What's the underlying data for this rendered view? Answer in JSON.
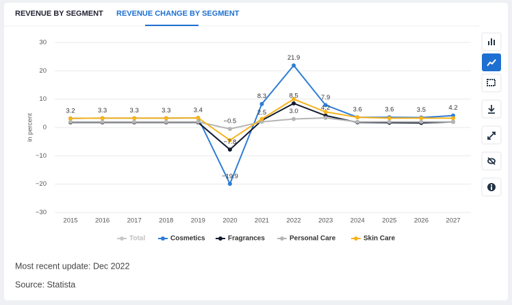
{
  "tabs": [
    "REVENUE BY SEGMENT",
    "REVENUE CHANGE BY SEGMENT"
  ],
  "active_tab": 1,
  "footer": {
    "update": "Most recent update: Dec 2022",
    "source": "Source: Statista"
  },
  "chart_data": {
    "type": "line",
    "ylabel": "in percent",
    "categories": [
      "2015",
      "2016",
      "2017",
      "2018",
      "2019",
      "2020",
      "2021",
      "2022",
      "2023",
      "2024",
      "2025",
      "2026",
      "2027"
    ],
    "ylim": [
      -30,
      30
    ],
    "yticks": [
      {
        "value": -30,
        "label": "−30"
      },
      {
        "value": -20,
        "label": "−20"
      },
      {
        "value": -10,
        "label": "−10"
      },
      0,
      10,
      20,
      30
    ],
    "grid": true,
    "legend": "bottom",
    "series": [
      {
        "name": "Total",
        "color": "#c8c8c8",
        "visible": false
      },
      {
        "name": "Cosmetics",
        "color": "#2d7cd6",
        "values": [
          3.2,
          3.3,
          3.3,
          3.3,
          3.4,
          -19.9,
          8.3,
          21.9,
          7.9,
          3.6,
          3.6,
          3.5,
          4.2
        ],
        "value_labels": [
          "3.2",
          "3.3",
          "3.3",
          "3.3",
          "3.4",
          "−19.9",
          "8.3",
          "21.9",
          "7.9",
          "3.6",
          "3.6",
          "3.5",
          "4.2"
        ]
      },
      {
        "name": "Fragrances",
        "color": "#111a2e",
        "values": [
          1.8,
          1.8,
          1.8,
          1.8,
          1.8,
          -7.8,
          2.5,
          8.5,
          4.2,
          1.8,
          1.7,
          1.6,
          2.0
        ],
        "value_labels": [
          null,
          null,
          null,
          null,
          null,
          "−7.8",
          "2.5",
          "8.5",
          "4.2",
          null,
          null,
          null,
          null
        ]
      },
      {
        "name": "Personal Care",
        "color": "#b5b5b5",
        "values": [
          2.0,
          2.0,
          2.0,
          2.0,
          2.0,
          -0.5,
          2.0,
          3.0,
          3.4,
          2.0,
          2.0,
          2.0,
          2.0
        ],
        "value_labels": [
          null,
          null,
          null,
          null,
          null,
          "−0.5",
          null,
          "3.0",
          null,
          null,
          null,
          null,
          null
        ]
      },
      {
        "name": "Skin Care",
        "color": "#f5b31c",
        "values": [
          3.2,
          3.3,
          3.3,
          3.3,
          3.4,
          -4.5,
          3.0,
          10.0,
          5.5,
          3.6,
          3.3,
          3.3,
          3.3
        ]
      }
    ]
  }
}
